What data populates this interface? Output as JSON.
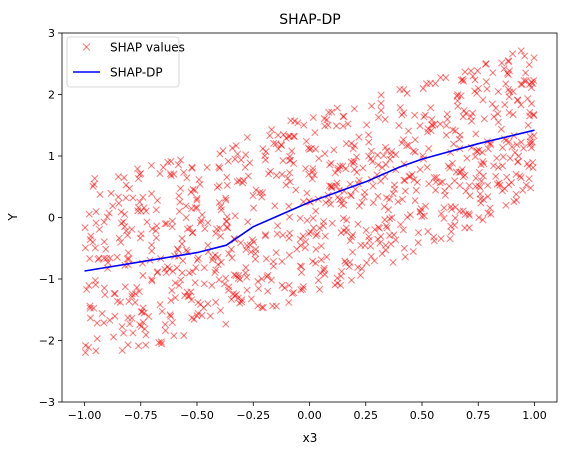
{
  "chart_data": {
    "type": "scatter",
    "title": "SHAP-DP",
    "xlabel": "x3",
    "ylabel": "Y",
    "xlim": [
      -1.1,
      1.1
    ],
    "ylim": [
      -3,
      3
    ],
    "xticks": [
      -1.0,
      -0.75,
      -0.5,
      -0.25,
      0.0,
      0.25,
      0.5,
      0.75,
      1.0
    ],
    "xtick_labels": [
      "−1.00",
      "−0.75",
      "−0.50",
      "−0.25",
      "0.00",
      "0.25",
      "0.50",
      "0.75",
      "1.00"
    ],
    "yticks": [
      -3,
      -2,
      -1,
      0,
      1,
      2,
      3
    ],
    "ytick_labels": [
      "−3",
      "−2",
      "−1",
      "0",
      "1",
      "2",
      "3"
    ],
    "grid": false,
    "legend_position": "top-left",
    "series": [
      {
        "name": "SHAP values",
        "kind": "scatter",
        "marker": "x",
        "color": "#ff0000",
        "alpha": 0.5,
        "n_points": 900,
        "x_range": [
          -1.0,
          1.0
        ],
        "band_lower": [
          [
            -1.0,
            -2.4
          ],
          [
            -0.5,
            -1.9
          ],
          [
            0.0,
            -1.3
          ],
          [
            0.5,
            -0.6
          ],
          [
            1.0,
            0.4
          ]
        ],
        "band_upper": [
          [
            -1.0,
            0.7
          ],
          [
            -0.5,
            1.0
          ],
          [
            0.0,
            1.7
          ],
          [
            0.5,
            2.2
          ],
          [
            1.0,
            2.8
          ]
        ]
      },
      {
        "name": "SHAP-DP",
        "kind": "line",
        "color": "#0000ff",
        "x": [
          -1.0,
          -0.75,
          -0.5,
          -0.37,
          -0.25,
          0.0,
          0.25,
          0.4,
          0.5,
          0.75,
          1.0
        ],
        "y": [
          -0.87,
          -0.72,
          -0.57,
          -0.45,
          -0.15,
          0.25,
          0.58,
          0.82,
          0.95,
          1.2,
          1.42
        ]
      }
    ]
  }
}
